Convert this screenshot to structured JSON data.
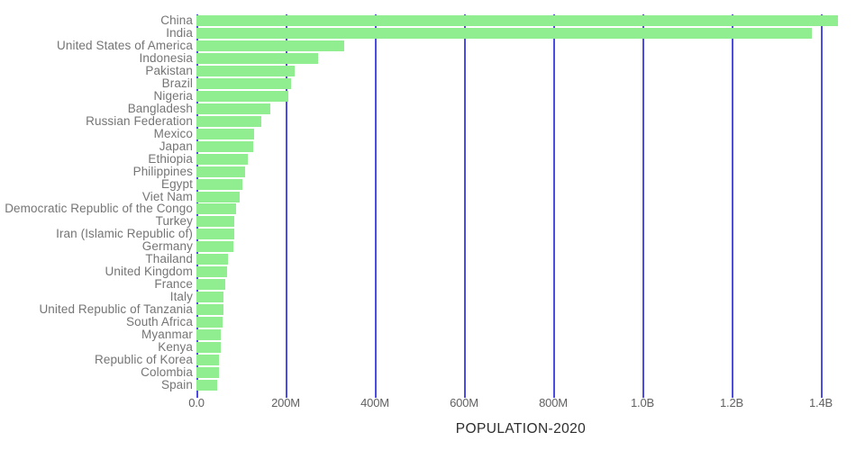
{
  "chart_data": {
    "type": "bar",
    "orientation": "horizontal",
    "xlabel": "POPULATION-2020",
    "value_unit": "millions",
    "categories": [
      "China",
      "India",
      "United States of America",
      "Indonesia",
      "Pakistan",
      "Brazil",
      "Nigeria",
      "Bangladesh",
      "Russian Federation",
      "Mexico",
      "Japan",
      "Ethiopia",
      "Philippines",
      "Egypt",
      "Viet Nam",
      "Democratic Republic of the Congo",
      "Turkey",
      "Iran (Islamic Republic of)",
      "Germany",
      "Thailand",
      "United Kingdom",
      "France",
      "Italy",
      "United Republic of Tanzania",
      "South Africa",
      "Myanmar",
      "Kenya",
      "Republic of Korea",
      "Colombia",
      "Spain"
    ],
    "values": [
      1439.3,
      1380.0,
      331.0,
      273.5,
      220.9,
      212.6,
      206.1,
      164.7,
      145.9,
      128.9,
      126.5,
      115.0,
      109.6,
      102.3,
      97.3,
      89.6,
      84.3,
      84.0,
      83.8,
      69.8,
      67.9,
      65.3,
      60.5,
      59.7,
      59.3,
      54.4,
      53.8,
      51.3,
      50.9,
      46.8
    ],
    "x_ticks": [
      {
        "label": "0.0",
        "value_m": 0
      },
      {
        "label": "200M",
        "value_m": 200
      },
      {
        "label": "400M",
        "value_m": 400
      },
      {
        "label": "600M",
        "value_m": 600
      },
      {
        "label": "800M",
        "value_m": 800
      },
      {
        "label": "1.0B",
        "value_m": 1000
      },
      {
        "label": "1.2B",
        "value_m": 1200
      },
      {
        "label": "1.4B",
        "value_m": 1400
      }
    ],
    "xlim_m": [
      0,
      1500
    ],
    "grid": "vertical",
    "legend": "none",
    "colors": {
      "bar": "#90EE90",
      "gridline": "#3333e0",
      "category_label": "#757575",
      "tick_label": "#616161",
      "axis_title": "#2d2d2d",
      "background": "#ffffff"
    }
  }
}
